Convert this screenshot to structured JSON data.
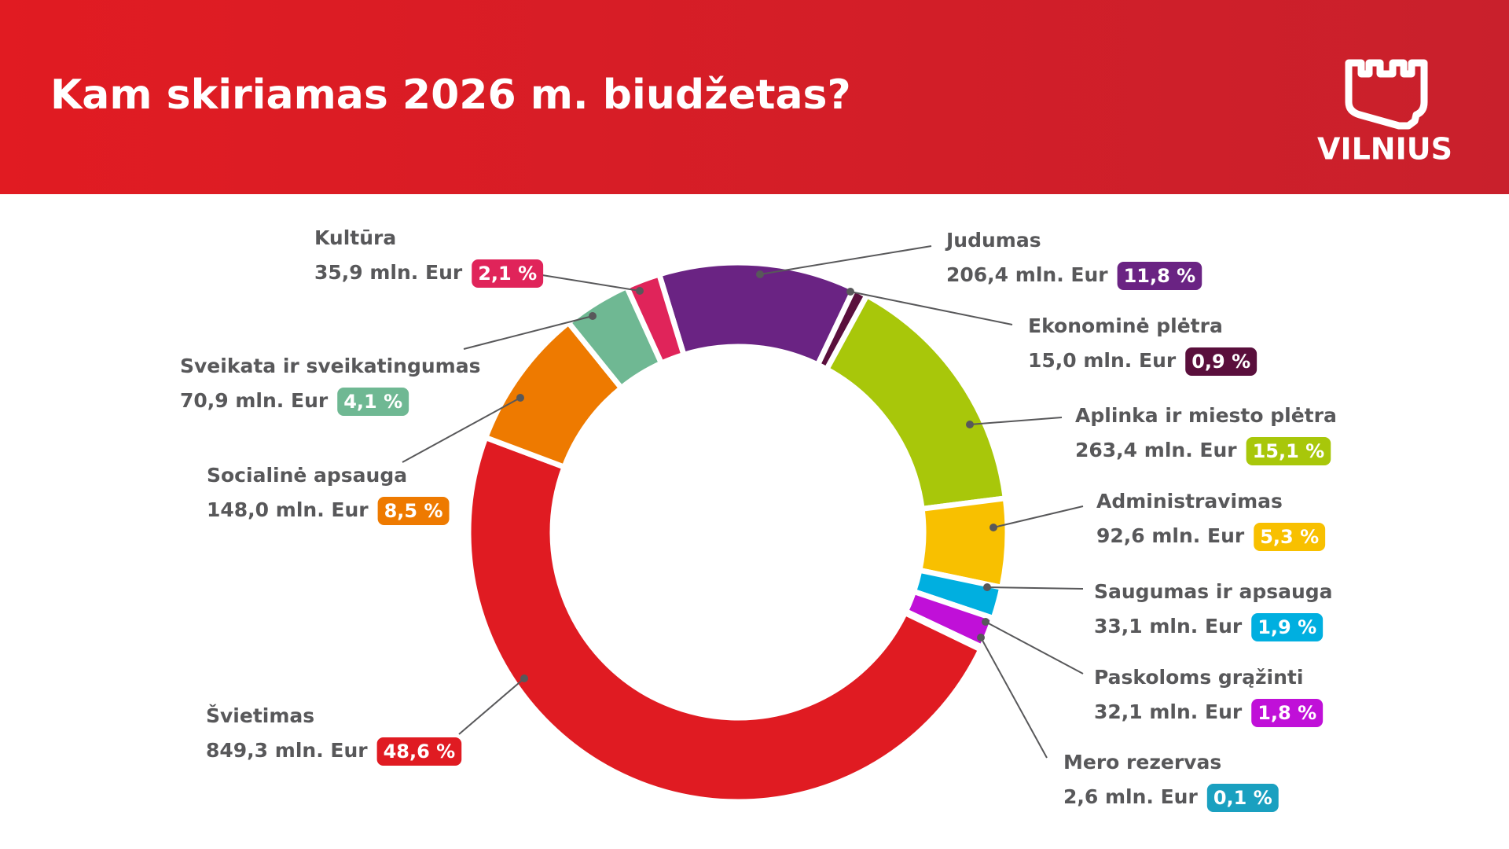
{
  "title": "Kam skiriamas 2026 m. biudžetas?",
  "brand": "VILNIUS",
  "chart_data": {
    "type": "donut",
    "categories": [
      "Judumas",
      "Ekonominė plėtra",
      "Aplinka ir miesto plėtra",
      "Administravimas",
      "Saugumas ir apsauga",
      "Paskoloms grąžinti",
      "Mero rezervas",
      "Švietimas",
      "Socialinė apsauga",
      "Sveikata ir sveikatingumas",
      "Kultūra"
    ],
    "values": [
      206.4,
      15.0,
      263.4,
      92.6,
      33.1,
      32.1,
      2.6,
      849.3,
      148.0,
      70.9,
      35.9
    ],
    "value_labels": [
      "206,4 mln. Eur",
      "15,0 mln. Eur",
      "263,4 mln. Eur",
      "92,6 mln. Eur",
      "33,1 mln. Eur",
      "32,1 mln. Eur",
      "2,6 mln. Eur",
      "849,3 mln. Eur",
      "148,0 mln. Eur",
      "70,9 mln. Eur",
      "35,9 mln. Eur"
    ],
    "percents": [
      11.8,
      0.9,
      15.1,
      5.3,
      1.9,
      1.8,
      0.1,
      48.6,
      8.5,
      4.1,
      2.1
    ],
    "percent_labels": [
      "11,8 %",
      "0,9 %",
      "15,1 %",
      "5,3 %",
      "1,9 %",
      "1,8 %",
      "0,1 %",
      "48,6 %",
      "8,5 %",
      "4,1 %",
      "2,1 %"
    ],
    "colors": [
      "#6a2383",
      "#5a0f3c",
      "#a8c70a",
      "#f8c000",
      "#00afe0",
      "#c010d8",
      "#1aa0c0",
      "#e01b22",
      "#ee7a00",
      "#6fb893",
      "#e0245a"
    ]
  }
}
